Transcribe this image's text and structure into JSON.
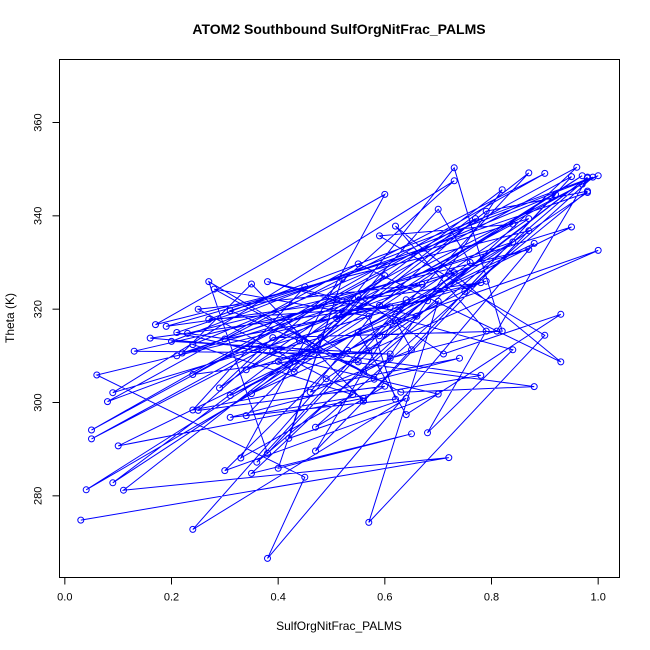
{
  "chart_data": {
    "type": "line",
    "title": "ATOM2 Southbound SulfOrgNitFrac_PALMS",
    "xlabel": "SulfOrgNitFrac_PALMS",
    "ylabel": "Theta (K)",
    "xlim": [
      -0.01,
      1.04
    ],
    "ylim": [
      262.5,
      373.5
    ],
    "xticks": [
      0.0,
      0.2,
      0.4,
      0.6,
      0.8,
      1.0
    ],
    "xtick_labels": [
      "0.0",
      "0.2",
      "0.4",
      "0.6",
      "0.8",
      "1.0"
    ],
    "yticks": [
      280,
      300,
      320,
      340,
      360
    ],
    "ytick_labels": [
      "280",
      "300",
      "320",
      "340",
      "360"
    ],
    "grid": false,
    "series_color": "#0000ff",
    "marker": "open-circle",
    "series": [
      {
        "x": [
          0.03,
          0.72,
          0.11,
          0.87,
          0.38,
          0.27,
          0.58,
          0.82,
          0.09,
          0.97,
          0.04,
          0.84,
          0.22,
          0.35,
          0.56,
          0.95,
          0.05,
          1.0,
          0.2,
          0.61,
          0.13,
          0.67,
          0.25,
          0.56,
          0.1,
          0.88,
          0.38,
          0.45,
          0.06,
          0.79,
          0.09,
          0.73,
          0.25,
          0.6,
          0.47,
          0.99,
          0.27,
          0.61,
          0.3,
          0.9,
          0.05,
          0.96,
          0.35,
          0.65,
          0.4,
          0.52,
          0.42,
          0.64,
          0.24,
          0.49,
          0.7,
          0.57,
          0.9,
          0.59,
          0.84,
          0.51,
          0.73,
          0.82,
          0.39,
          0.29,
          0.6,
          0.34,
          0.78,
          0.23,
          0.87,
          0.21,
          0.51,
          0.95,
          0.31,
          0.43,
          0.55,
          0.71,
          0.93,
          0.64,
          0.55,
          0.87,
          0.31,
          0.44,
          0.56,
          0.61,
          0.81,
          0.98,
          0.36,
          0.64,
          0.47,
          0.87,
          0.17,
          0.6,
          0.33,
          0.54,
          0.24,
          0.92,
          0.75,
          0.98,
          0.79,
          0.35,
          0.59,
          0.98,
          0.68,
          0.16,
          0.52,
          0.76,
          0.7,
          0.43,
          0.4,
          1.0,
          0.57,
          0.24,
          0.77,
          0.59,
          0.46,
          0.65,
          0.62,
          0.98,
          0.21,
          0.7,
          0.3,
          0.53,
          0.78,
          0.19,
          0.45,
          0.24,
          0.74,
          0.31,
          0.62,
          0.57,
          0.28,
          0.63,
          0.88,
          0.39,
          0.48,
          0.55,
          0.73,
          0.08,
          0.55,
          0.93,
          0.62,
          0.79,
          0.68,
          0.84,
          0.38,
          0.66,
          0.34,
          0.97
        ],
        "y": [
          274.8,
          288.2,
          281.2,
          349.2,
          289.1,
          325.9,
          305.0,
          345.6,
          282.8,
          348.6,
          281.3,
          334.4,
          310.6,
          325.4,
          300.3,
          348.4,
          292.2,
          348.6,
          313.1,
          310.4,
          311.0,
          325.3,
          320.0,
          300.9,
          290.7,
          334.1,
          266.6,
          284.0,
          305.9,
          326.0,
          302.1,
          347.5,
          298.3,
          303.5,
          294.7,
          348.3,
          317.8,
          320.5,
          313.6,
          349.1,
          294.1,
          350.4,
          284.8,
          293.3,
          285.9,
          326.5,
          292.3,
          300.9,
          272.8,
          305.1,
          321.7,
          274.3,
          314.4,
          335.7,
          338.2,
          318.0,
          350.3,
          315.3,
          313.9,
          303.1,
          327.2,
          297.2,
          305.8,
          314.8,
          332.8,
          310.0,
          322.1,
          337.6,
          301.5,
          308.8,
          322.7,
          310.4,
          318.9,
          297.4,
          315.0,
          339.4,
          319.7,
          313.2,
          306.5,
          309.5,
          315.3,
          348.1,
          287.2,
          322.0,
          289.6,
          336.8,
          316.7,
          344.6,
          288.1,
          301.7,
          312.4,
          344.6,
          323.8,
          345.3,
          341.0,
          301.9,
          314.3,
          348.3,
          321.8,
          313.8,
          310.2,
          330.0,
          341.4,
          306.5,
          308.8,
          332.6,
          311.1,
          306.0,
          339.4,
          320.8,
          302.2,
          311.3,
          317.6,
          345.0,
          315.0,
          301.8,
          285.4,
          311.2,
          325.7,
          316.3,
          324.8,
          298.4,
          309.5,
          296.8,
          300.7,
          318.5,
          324.3,
          302.2,
          303.4,
          311.0,
          313.9,
          308.7,
          327.8,
          300.2,
          329.7,
          308.7,
          337.8,
          315.3,
          293.5,
          311.3,
          325.9,
          318.5,
          307.0,
          346.8
        ]
      }
    ]
  }
}
